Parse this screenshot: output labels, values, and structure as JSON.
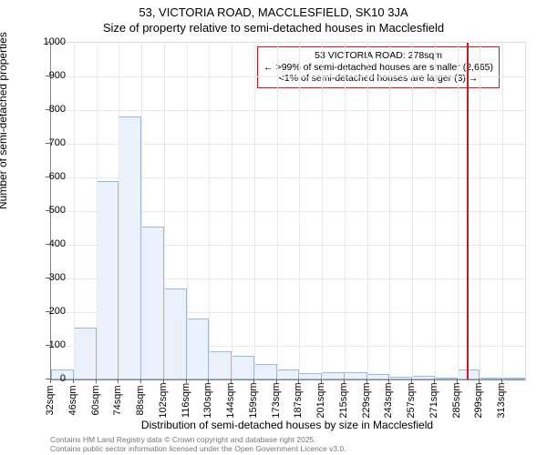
{
  "header": {
    "title": "53, VICTORIA ROAD, MACCLESFIELD, SK10 3JA",
    "subtitle": "Size of property relative to semi-detached houses in Macclesfield"
  },
  "chart": {
    "type": "histogram",
    "background_color": "#ffffff",
    "grid_color": "#e8e8e8",
    "axis_color": "#888888",
    "bar_fill": "#ebf1fa",
    "bar_border": "#a0b8d8",
    "ylabel": "Number of semi-detached properties",
    "xlabel": "Distribution of semi-detached houses by size in Macclesfield",
    "ylim": [
      0,
      1000
    ],
    "ytick_step": 100,
    "yticks": [
      0,
      100,
      200,
      300,
      400,
      500,
      600,
      700,
      800,
      900,
      1000
    ],
    "xtick_labels": [
      "32sqm",
      "46sqm",
      "60sqm",
      "74sqm",
      "88sqm",
      "102sqm",
      "116sqm",
      "130sqm",
      "144sqm",
      "159sqm",
      "173sqm",
      "187sqm",
      "201sqm",
      "215sqm",
      "229sqm",
      "243sqm",
      "257sqm",
      "271sqm",
      "285sqm",
      "299sqm",
      "313sqm"
    ],
    "values": [
      30,
      155,
      590,
      780,
      455,
      270,
      180,
      85,
      70,
      45,
      30,
      18,
      22,
      22,
      15,
      8,
      10,
      5,
      30,
      6,
      5
    ],
    "marker": {
      "color": "#d01616",
      "position_sqm": 278,
      "frac": 0.876
    },
    "annotation": {
      "line1": "53 VICTORIA ROAD: 278sqm",
      "line2": "← >99% of semi-detached houses are smaller (2,665)",
      "line3": "<1% of semi-detached houses are larger (3) →"
    },
    "label_fontsize": 12,
    "tick_fontsize": 11
  },
  "footnote": {
    "line1": "Contains HM Land Registry data © Crown copyright and database right 2025.",
    "line2": "Contains public sector information licensed under the Open Government Licence v3.0."
  }
}
